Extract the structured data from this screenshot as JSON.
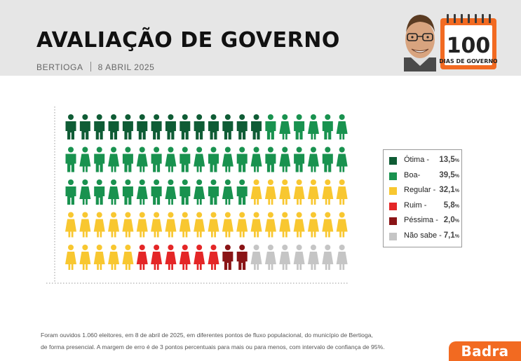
{
  "header": {
    "title": "AVALIAÇÃO DE GOVERNO",
    "city": "BERTIOGA",
    "date": "8 ABRIL 2025",
    "badge_number": "100",
    "badge_text": "DIAS DE GOVERNO"
  },
  "colors": {
    "otima": "#0f5c35",
    "boa": "#19924f",
    "regular": "#f8c730",
    "ruim": "#e42627",
    "pessima": "#8a1416",
    "nao_sabe": "#c5c5c5",
    "brand": "#f26a21"
  },
  "chart_data": {
    "type": "pictogram",
    "total_icons": 100,
    "categories": [
      "Ótima -",
      "Boa-",
      "Regular -",
      "Ruim -",
      "Péssima -",
      "Não sabe -"
    ],
    "values": [
      13.5,
      39.5,
      32.1,
      5.8,
      2.0,
      7.1
    ],
    "value_labels": [
      "13,5",
      "39,5",
      "32,1",
      "5,8",
      "2,0",
      "7,1"
    ],
    "unit": "%",
    "icon_counts": [
      14,
      39,
      32,
      6,
      2,
      7
    ],
    "legend_position": "right"
  },
  "footnote": {
    "line1": "Foram ouvidos 1.060 eleitores, em 8 de abril de 2025, em diferentes pontos de fluxo populacional, do município de Bertioga,",
    "line2": "de forma presencial. A margem de erro é de 3 pontos percentuais para mais ou para menos, com intervalo de confiança de 95%."
  },
  "brand": {
    "name": "Badra"
  }
}
